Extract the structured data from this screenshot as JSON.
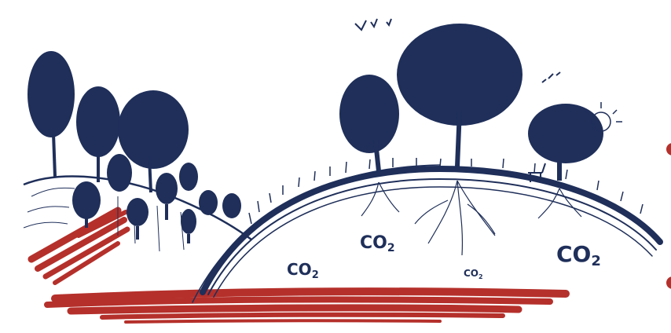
{
  "illustration": {
    "colors": {
      "ink": "#1f2f5a",
      "accent_red": "#b5302b",
      "background": "#ffffff"
    },
    "labels": [
      {
        "text": "CO",
        "sub": "2"
      },
      {
        "text": "CO",
        "sub": "2"
      },
      {
        "text": "CO",
        "sub": "2"
      },
      {
        "text": "CO",
        "sub": "2"
      }
    ]
  }
}
